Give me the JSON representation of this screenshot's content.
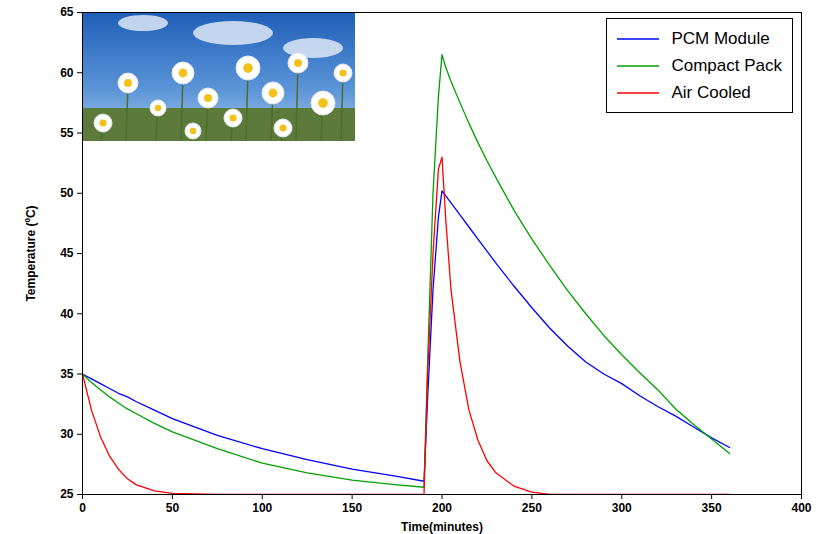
{
  "chart_data": {
    "type": "line",
    "xlabel": "Time(minutes)",
    "ylabel": "Temperature (ºC)",
    "x": [
      0,
      5,
      10,
      15,
      20,
      25,
      30,
      40,
      50,
      75,
      100,
      125,
      150,
      175,
      190,
      192,
      195,
      198,
      200,
      202,
      205,
      210,
      215,
      220,
      225,
      230,
      240,
      250,
      260,
      270,
      280,
      290,
      300,
      310,
      320,
      330,
      340,
      350,
      360
    ],
    "series": [
      {
        "name": "PCM Module",
        "color": "#0000ff",
        "values": [
          35,
          34.6,
          34.2,
          33.8,
          33.4,
          33.1,
          32.7,
          32,
          31.3,
          29.9,
          28.8,
          27.9,
          27.1,
          26.5,
          26.1,
          33,
          42,
          48,
          50.2,
          49.8,
          49.2,
          48.2,
          47.2,
          46.2,
          45.2,
          44.2,
          42.3,
          40.5,
          38.8,
          37.3,
          36,
          35,
          34.2,
          33.2,
          32.3,
          31.5,
          30.6,
          29.7,
          28.9
        ]
      },
      {
        "name": "Compact Pack",
        "color": "#00a000",
        "values": [
          35,
          34.3,
          33.7,
          33.1,
          32.6,
          32.1,
          31.7,
          30.9,
          30.2,
          28.8,
          27.6,
          26.8,
          26.2,
          25.8,
          25.6,
          36,
          50,
          58,
          61.5,
          60.5,
          59.3,
          57.5,
          55.8,
          54.2,
          52.7,
          51.3,
          48.6,
          46.2,
          44,
          41.9,
          40,
          38.2,
          36.6,
          35.1,
          33.7,
          32.1,
          30.8,
          29.6,
          28.4
        ]
      },
      {
        "name": "Air Cooled",
        "color": "#ff0000",
        "values": [
          35,
          32,
          29.8,
          28.2,
          27.1,
          26.3,
          25.8,
          25.3,
          25.1,
          25,
          25,
          25,
          25,
          25,
          25,
          35,
          45,
          52,
          53,
          48,
          42,
          36,
          32,
          29.5,
          27.8,
          26.8,
          25.7,
          25.2,
          25,
          25,
          25,
          25,
          25,
          25,
          25,
          25,
          25,
          25,
          25
        ]
      }
    ],
    "xlim": [
      0,
      400
    ],
    "ylim": [
      25,
      65
    ],
    "xticks": [
      0,
      50,
      100,
      150,
      200,
      250,
      300,
      350,
      400
    ],
    "yticks": [
      25,
      30,
      35,
      40,
      45,
      50,
      55,
      60,
      65
    ],
    "legend": "upper right",
    "grid": false
  }
}
